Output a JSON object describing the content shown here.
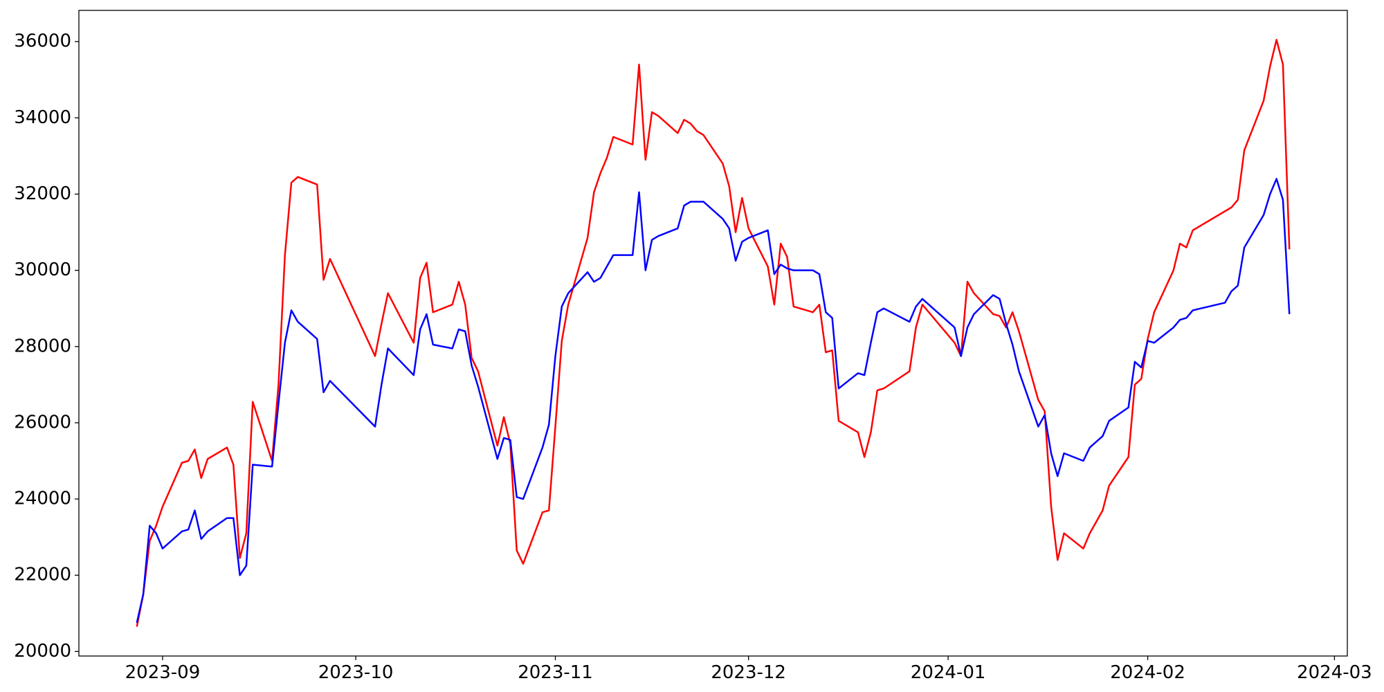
{
  "chart_data": {
    "type": "line",
    "x": [
      "2023-08-28",
      "2023-08-29",
      "2023-08-30",
      "2023-08-31",
      "2023-09-01",
      "2023-09-04",
      "2023-09-05",
      "2023-09-06",
      "2023-09-07",
      "2023-09-08",
      "2023-09-11",
      "2023-09-12",
      "2023-09-13",
      "2023-09-14",
      "2023-09-15",
      "2023-09-18",
      "2023-09-19",
      "2023-09-20",
      "2023-09-21",
      "2023-09-22",
      "2023-09-25",
      "2023-09-26",
      "2023-09-27",
      "2023-10-04",
      "2023-10-05",
      "2023-10-06",
      "2023-10-10",
      "2023-10-11",
      "2023-10-12",
      "2023-10-13",
      "2023-10-16",
      "2023-10-17",
      "2023-10-18",
      "2023-10-19",
      "2023-10-20",
      "2023-10-23",
      "2023-10-24",
      "2023-10-25",
      "2023-10-26",
      "2023-10-27",
      "2023-10-30",
      "2023-10-31",
      "2023-11-01",
      "2023-11-02",
      "2023-11-03",
      "2023-11-06",
      "2023-11-07",
      "2023-11-08",
      "2023-11-09",
      "2023-11-10",
      "2023-11-13",
      "2023-11-14",
      "2023-11-15",
      "2023-11-16",
      "2023-11-17",
      "2023-11-20",
      "2023-11-21",
      "2023-11-22",
      "2023-11-23",
      "2023-11-24",
      "2023-11-27",
      "2023-11-28",
      "2023-11-29",
      "2023-11-30",
      "2023-12-01",
      "2023-12-04",
      "2023-12-05",
      "2023-12-06",
      "2023-12-07",
      "2023-12-08",
      "2023-12-11",
      "2023-12-12",
      "2023-12-13",
      "2023-12-14",
      "2023-12-15",
      "2023-12-18",
      "2023-12-19",
      "2023-12-20",
      "2023-12-21",
      "2023-12-22",
      "2023-12-26",
      "2023-12-27",
      "2023-12-28",
      "2024-01-02",
      "2024-01-03",
      "2024-01-04",
      "2024-01-05",
      "2024-01-08",
      "2024-01-09",
      "2024-01-10",
      "2024-01-11",
      "2024-01-12",
      "2024-01-15",
      "2024-01-16",
      "2024-01-17",
      "2024-01-18",
      "2024-01-19",
      "2024-01-22",
      "2024-01-23",
      "2024-01-24",
      "2024-01-25",
      "2024-01-26",
      "2024-01-29",
      "2024-01-30",
      "2024-01-31",
      "2024-02-01",
      "2024-02-02",
      "2024-02-05",
      "2024-02-06",
      "2024-02-07",
      "2024-02-08",
      "2024-02-13",
      "2024-02-14",
      "2024-02-15",
      "2024-02-16",
      "2024-02-19",
      "2024-02-20",
      "2024-02-21",
      "2024-02-22",
      "2024-02-23"
    ],
    "series": [
      {
        "color": "#ff0000",
        "values": [
          20650,
          21500,
          22900,
          23300,
          23800,
          24950,
          25000,
          25300,
          24550,
          25050,
          25350,
          24900,
          22450,
          23100,
          26550,
          25000,
          27000,
          30400,
          32300,
          32450,
          32250,
          29750,
          30300,
          27750,
          28600,
          29400,
          28100,
          29800,
          30200,
          28900,
          29100,
          29700,
          29100,
          27700,
          27350,
          25400,
          26150,
          25450,
          22650,
          22300,
          23650,
          23700,
          25900,
          28150,
          29100,
          30850,
          32050,
          32550,
          32950,
          33500,
          33300,
          35400,
          32900,
          34150,
          34050,
          33600,
          33950,
          33850,
          33650,
          33550,
          32800,
          32200,
          31000,
          31900,
          31100,
          30100,
          29100,
          30700,
          30350,
          29050,
          28900,
          29100,
          27850,
          27900,
          26050,
          25750,
          25100,
          25750,
          26850,
          26900,
          27350,
          28500,
          29100,
          28100,
          27750,
          29700,
          29400,
          28850,
          28800,
          28500,
          28900,
          28400,
          26600,
          26300,
          23800,
          22400,
          23100,
          22700,
          23100,
          23400,
          23700,
          24350,
          25100,
          27000,
          27150,
          28200,
          28900,
          30000,
          30700,
          30600,
          31050,
          31550,
          31650,
          31850,
          33150,
          34450,
          35350,
          36050,
          35400,
          30550
        ]
      },
      {
        "color": "#0000ff",
        "values": [
          20750,
          21500,
          23300,
          23100,
          22700,
          23150,
          23200,
          23700,
          22950,
          23150,
          23500,
          23500,
          22000,
          22250,
          24900,
          24850,
          26500,
          28100,
          28950,
          28650,
          28200,
          26800,
          27100,
          25900,
          27000,
          27950,
          27250,
          28450,
          28850,
          28050,
          27950,
          28450,
          28400,
          27500,
          26950,
          25050,
          25600,
          25550,
          24050,
          24000,
          25350,
          25950,
          27750,
          29050,
          29400,
          29950,
          29700,
          29800,
          30100,
          30400,
          30400,
          32050,
          30000,
          30800,
          30900,
          31100,
          31700,
          31800,
          31800,
          31800,
          31350,
          31100,
          30250,
          30750,
          30850,
          31050,
          29900,
          30150,
          30050,
          30000,
          30000,
          29900,
          28900,
          28750,
          26900,
          27300,
          27250,
          28100,
          28900,
          29000,
          28650,
          29050,
          29250,
          28500,
          27750,
          28500,
          28850,
          29350,
          29250,
          28600,
          28050,
          27350,
          25900,
          26200,
          25200,
          24600,
          25200,
          25000,
          25350,
          25500,
          25650,
          26050,
          26400,
          27600,
          27450,
          28150,
          28100,
          28500,
          28700,
          28750,
          28950,
          29150,
          29450,
          29600,
          30600,
          31450,
          32000,
          32400,
          31850,
          28850
        ]
      }
    ],
    "xlim": [
      "2023-08-19",
      "2024-03-03"
    ],
    "xticks": [
      {
        "value": "2023-09-01",
        "label": "2023-09"
      },
      {
        "value": "2023-10-01",
        "label": "2023-10"
      },
      {
        "value": "2023-11-01",
        "label": "2023-11"
      },
      {
        "value": "2023-12-01",
        "label": "2023-12"
      },
      {
        "value": "2024-01-01",
        "label": "2024-01"
      },
      {
        "value": "2024-02-01",
        "label": "2024-02"
      },
      {
        "value": "2024-03-01",
        "label": "2024-03"
      }
    ],
    "ylim": [
      19880,
      36820
    ],
    "yticks": [
      20000,
      22000,
      24000,
      26000,
      28000,
      30000,
      32000,
      34000,
      36000
    ],
    "grid": false
  }
}
